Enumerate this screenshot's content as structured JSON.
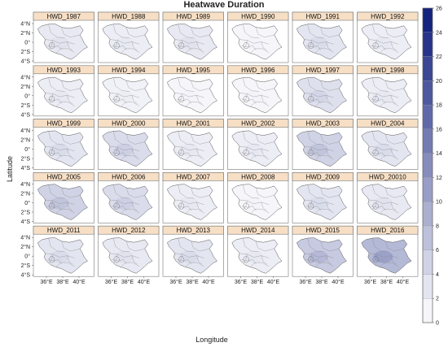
{
  "title": "Heatwave Duration",
  "x_axis_label": "Longitude",
  "y_axis_label": "Latitude",
  "x_ticks": [
    "36°E",
    "38°E",
    "40°E"
  ],
  "y_ticks": [
    "4°N",
    "2°N",
    "0°",
    "2°S",
    "4°S"
  ],
  "colorbar": {
    "ticks": [
      0,
      2,
      4,
      6,
      8,
      10,
      12,
      14,
      16,
      18,
      20,
      22,
      24,
      26
    ],
    "min": 0,
    "max": 26,
    "low_color": "#ffffff",
    "high_color": "#0c1a7a"
  },
  "panel_header_color": "#f7dfc5",
  "panels": [
    {
      "label": "HWD_1987",
      "intensity": 2.5
    },
    {
      "label": "HWD_1988",
      "intensity": 2
    },
    {
      "label": "HWD_1989",
      "intensity": 2.5
    },
    {
      "label": "HWD_1990",
      "intensity": 1
    },
    {
      "label": "HWD_1991",
      "intensity": 3
    },
    {
      "label": "HWD_1992",
      "intensity": 2
    },
    {
      "label": "HWD_1993",
      "intensity": 2
    },
    {
      "label": "HWD_1994",
      "intensity": 1.5
    },
    {
      "label": "HWD_1995",
      "intensity": 1
    },
    {
      "label": "HWD_1996",
      "intensity": 1
    },
    {
      "label": "HWD_1997",
      "intensity": 3.5
    },
    {
      "label": "HWD_1998",
      "intensity": 2
    },
    {
      "label": "HWD_1999",
      "intensity": 3
    },
    {
      "label": "HWD_2000",
      "intensity": 4
    },
    {
      "label": "HWD_2001",
      "intensity": 2
    },
    {
      "label": "HWD_2002",
      "intensity": 2
    },
    {
      "label": "HWD_2003",
      "intensity": 5
    },
    {
      "label": "HWD_2004",
      "intensity": 3
    },
    {
      "label": "HWD_2005",
      "intensity": 5
    },
    {
      "label": "HWD_2006",
      "intensity": 4
    },
    {
      "label": "HWD_2007",
      "intensity": 2
    },
    {
      "label": "HWD_2008",
      "intensity": 1
    },
    {
      "label": "HWD_2009",
      "intensity": 3
    },
    {
      "label": "HWD_20010",
      "intensity": 2.5
    },
    {
      "label": "HWD_2011",
      "intensity": 3
    },
    {
      "label": "HWD_2012",
      "intensity": 2.5
    },
    {
      "label": "HWD_2013",
      "intensity": 3
    },
    {
      "label": "HWD_2014",
      "intensity": 2
    },
    {
      "label": "HWD_2015",
      "intensity": 6
    },
    {
      "label": "HWD_2016",
      "intensity": 8
    }
  ]
}
